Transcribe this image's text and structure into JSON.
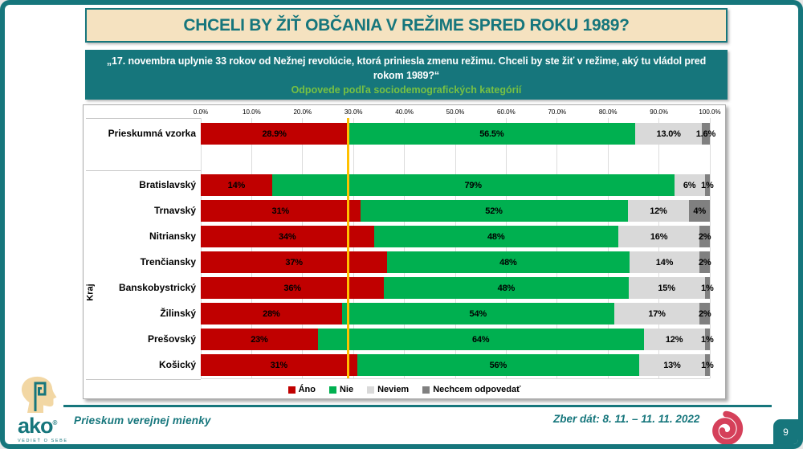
{
  "title": "CHCELI BY ŽIŤ OBČANIA V REŽIME SPRED ROKU 1989?",
  "question_box": {
    "line1": "„17. novembra uplynie 33 rokov od Nežnej revolúcie, ktorá priniesla zmenu režimu. Chceli by ste žiť v režime, aký tu vládol pred rokom 1989?“",
    "line2": "Odpovede podľa sociodemografických kategórií"
  },
  "footer": {
    "left_text": "Prieskum verejnej mienky",
    "right_text": "Zber dát: 8. 11. – 11. 11. 2022",
    "logo_word": "ako",
    "logo_reg": "®",
    "logo_tagline": "VEDIEŤ O SEBE",
    "page_number": "9"
  },
  "colors": {
    "teal": "#16767C",
    "cream": "#F5E2C0",
    "green_text": "#77C043",
    "ano_red": "#C00000",
    "nie_green": "#00B050",
    "neviem_gray": "#D9D9D9",
    "nechcem_gray": "#808080",
    "reference_line": "#FFC000",
    "spiral_red": "#D5405A"
  },
  "chart_data": {
    "type": "bar",
    "subtype": "horizontal-stacked",
    "title": "Chceli by ste žiť v režime, aký tu vládol pred rokom 1989? — odpovede podľa kraja",
    "legend": [
      "Áno",
      "Nie",
      "Neviem",
      "Nechcem odpovedať"
    ],
    "legend_position": "bottom",
    "series_colors": [
      "#C00000",
      "#00B050",
      "#D9D9D9",
      "#808080"
    ],
    "axis": {
      "min": 0,
      "max": 100,
      "ticks": [
        "0.0%",
        "10.0%",
        "20.0%",
        "30.0%",
        "40.0%",
        "50.0%",
        "60.0%",
        "70.0%",
        "80.0%",
        "90.0%",
        "100.0%"
      ],
      "grid": true
    },
    "reference_line": {
      "value": 28.9,
      "color": "#FFC000"
    },
    "group_label": "Kraj",
    "rows": [
      {
        "group": "",
        "label": "Prieskumná vzorka",
        "values": [
          28.9,
          56.5,
          13.0,
          1.6
        ],
        "value_labels": [
          "28.9%",
          "56.5%",
          "13.0%",
          "1.6%"
        ]
      },
      {
        "group": "Kraj",
        "label": "Bratislavský",
        "values": [
          14,
          79,
          6,
          1
        ],
        "value_labels": [
          "14%",
          "79%",
          "6%",
          "1%"
        ]
      },
      {
        "group": "Kraj",
        "label": "Trnavský",
        "values": [
          31,
          52,
          12,
          4
        ],
        "value_labels": [
          "31%",
          "52%",
          "12%",
          "4%"
        ]
      },
      {
        "group": "Kraj",
        "label": "Nitriansky",
        "values": [
          34,
          48,
          16,
          2
        ],
        "value_labels": [
          "34%",
          "48%",
          "16%",
          "2%"
        ]
      },
      {
        "group": "Kraj",
        "label": "Trenčiansky",
        "values": [
          37,
          48,
          14,
          2
        ],
        "value_labels": [
          "37%",
          "48%",
          "14%",
          "2%"
        ]
      },
      {
        "group": "Kraj",
        "label": "Banskobystrický",
        "values": [
          36,
          48,
          15,
          1
        ],
        "value_labels": [
          "36%",
          "48%",
          "15%",
          "1%"
        ]
      },
      {
        "group": "Kraj",
        "label": "Žilinský",
        "values": [
          28,
          54,
          17,
          2
        ],
        "value_labels": [
          "28%",
          "54%",
          "17%",
          "2%"
        ]
      },
      {
        "group": "Kraj",
        "label": "Prešovský",
        "values": [
          23,
          64,
          12,
          1
        ],
        "value_labels": [
          "23%",
          "64%",
          "12%",
          "1%"
        ]
      },
      {
        "group": "Kraj",
        "label": "Košický",
        "values": [
          31,
          56,
          13,
          1
        ],
        "value_labels": [
          "31%",
          "56%",
          "13%",
          "1%"
        ]
      }
    ]
  }
}
